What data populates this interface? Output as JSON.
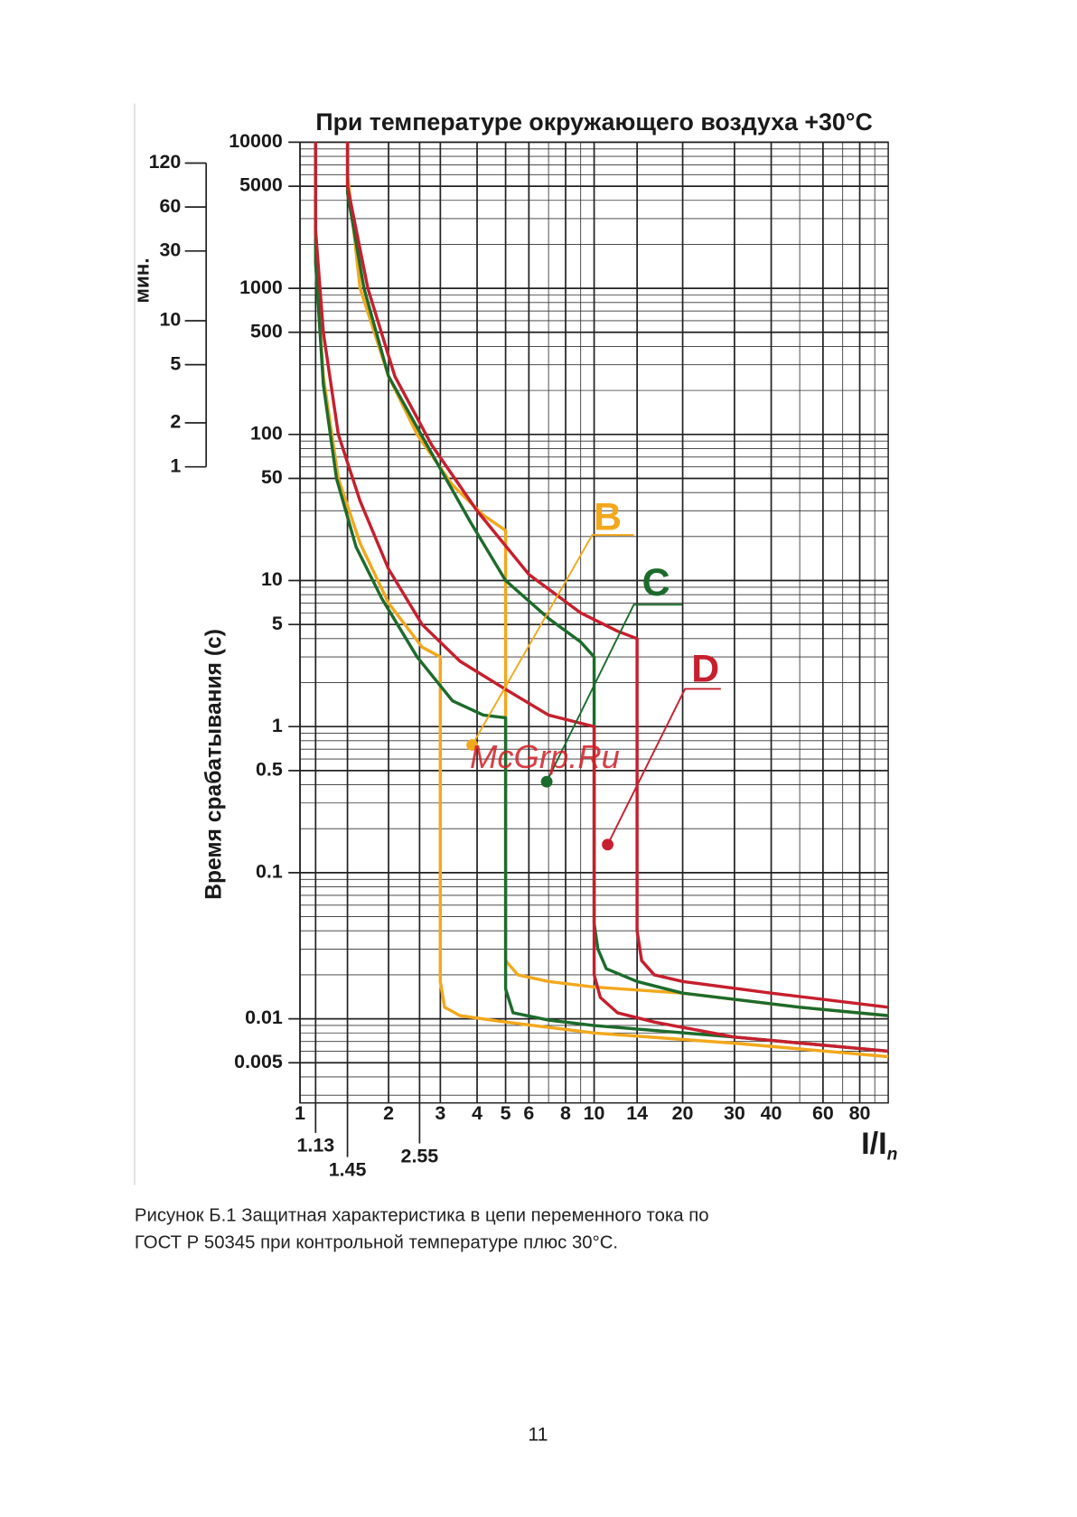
{
  "chart_data": {
    "type": "line",
    "title": "При температуре окружающего воздуха +30°C",
    "y_label": "Время срабатывания (с)",
    "y2_label": "мин.",
    "x_label": {
      "main": "I/I",
      "sub": "n"
    },
    "watermark": "McGrp.Ru",
    "log_x": true,
    "log_y": true,
    "grid": true,
    "xlim": [
      1,
      100
    ],
    "xticks": [
      1,
      2,
      3,
      4,
      5,
      6,
      8,
      10,
      14,
      20,
      30,
      40,
      60,
      80
    ],
    "xticks2": [
      1.13,
      1.45,
      2.55
    ],
    "ylim": [
      0.003,
      10000
    ],
    "yticks": [
      10000,
      5000,
      1000,
      500,
      100,
      50,
      10,
      5,
      1,
      0.5,
      0.1,
      0.01,
      0.005
    ],
    "y2lim": [
      5e-05,
      166.6667
    ],
    "y2ticks": [
      120,
      60,
      30,
      10,
      5,
      2,
      1
    ],
    "series": [
      {
        "name": "B",
        "color": "#f2a81d",
        "curves": [
          {
            "x": [
              1.13,
              1.13,
              1.2,
              1.35,
              1.6,
              2,
              2.6,
              3,
              3,
              3.1,
              3.5,
              5,
              10,
              30,
              100
            ],
            "values": [
              10000,
              1500,
              250,
              50,
              18,
              7,
              3.5,
              3,
              0.018,
              0.012,
              0.0105,
              0.0095,
              0.008,
              0.0068,
              0.0055
            ]
          },
          {
            "x": [
              1.45,
              1.45,
              1.6,
              2,
              2.5,
              3.3,
              4.2,
              5,
              5,
              5.5,
              7,
              10,
              20,
              50,
              100
            ],
            "values": [
              10000,
              6000,
              1000,
              250,
              100,
              45,
              28,
              22,
              0.025,
              0.02,
              0.018,
              0.0165,
              0.015,
              0.012,
              0.0105
            ]
          }
        ]
      },
      {
        "name": "C",
        "color": "#1d6b2c",
        "curves": [
          {
            "x": [
              1.13,
              1.13,
              1.2,
              1.33,
              1.55,
              1.9,
              2.5,
              3.3,
              4.2,
              5,
              5,
              5.3,
              7,
              10,
              30,
              100
            ],
            "values": [
              10000,
              1500,
              220,
              50,
              17,
              7.5,
              3,
              1.5,
              1.2,
              1.15,
              0.016,
              0.011,
              0.0098,
              0.009,
              0.0075,
              0.006
            ]
          },
          {
            "x": [
              1.45,
              1.45,
              1.65,
              2,
              2.7,
              3.8,
              5,
              7,
              9,
              10,
              10,
              10.3,
              11,
              14,
              20,
              50,
              100
            ],
            "values": [
              10000,
              4500,
              1000,
              250,
              85,
              25,
              10,
              5.5,
              3.8,
              3,
              0.045,
              0.03,
              0.022,
              0.018,
              0.015,
              0.012,
              0.0105
            ]
          }
        ]
      },
      {
        "name": "D",
        "color": "#c61f2e",
        "curves": [
          {
            "x": [
              1.13,
              1.13,
              1.2,
              1.35,
              1.6,
              2,
              2.6,
              3.5,
              5,
              7,
              10,
              10,
              10.5,
              12,
              16,
              30,
              100
            ],
            "values": [
              10000,
              2500,
              500,
              100,
              35,
              12,
              5,
              2.8,
              1.8,
              1.2,
              1,
              0.02,
              0.014,
              0.011,
              0.0095,
              0.0075,
              0.006
            ]
          },
          {
            "x": [
              1.45,
              1.45,
              1.7,
              2.1,
              2.8,
              4,
              6,
              9,
              12,
              14,
              14,
              14.5,
              16,
              20,
              40,
              100
            ],
            "values": [
              10000,
              5000,
              1000,
              250,
              85,
              30,
              11,
              6,
              4.5,
              4,
              0.04,
              0.025,
              0.02,
              0.018,
              0.015,
              0.012
            ]
          }
        ]
      }
    ]
  },
  "caption": [
    "Рисунок Б.1 Защитная характеристика в цепи переменного тока по",
    "ГОСТ Р 50345 при контрольной температуре плюс 30°С."
  ],
  "page_number": "11"
}
